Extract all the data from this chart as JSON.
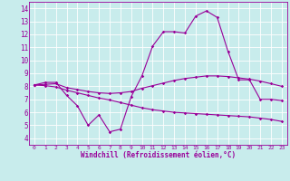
{
  "xlabel": "Windchill (Refroidissement éolien,°C)",
  "bg_color": "#c8ecec",
  "line_color": "#990099",
  "grid_color": "#ffffff",
  "x_ticks": [
    0,
    1,
    2,
    3,
    4,
    5,
    6,
    7,
    8,
    9,
    10,
    11,
    12,
    13,
    14,
    15,
    16,
    17,
    18,
    19,
    20,
    21,
    22,
    23
  ],
  "y_ticks": [
    4,
    5,
    6,
    7,
    8,
    9,
    10,
    11,
    12,
    13,
    14
  ],
  "xlim": [
    -0.5,
    23.5
  ],
  "ylim": [
    3.5,
    14.5
  ],
  "line1_x": [
    0,
    1,
    2,
    3,
    4,
    5,
    6,
    7,
    8,
    9,
    10,
    11,
    12,
    13,
    14,
    15,
    16,
    17,
    18,
    19,
    20,
    21,
    22,
    23
  ],
  "line1_y": [
    8.1,
    8.3,
    8.3,
    7.3,
    6.5,
    5.0,
    5.8,
    4.5,
    4.7,
    7.2,
    8.8,
    11.1,
    12.2,
    12.2,
    12.1,
    13.4,
    13.8,
    13.3,
    10.7,
    8.5,
    8.5,
    7.0,
    7.0,
    6.9
  ],
  "line2_x": [
    0,
    1,
    2,
    3,
    4,
    5,
    6,
    7,
    8,
    9,
    10,
    11,
    12,
    13,
    14,
    15,
    16,
    17,
    18,
    19,
    20,
    21,
    22,
    23
  ],
  "line2_y": [
    8.1,
    8.15,
    8.2,
    7.9,
    7.75,
    7.6,
    7.5,
    7.45,
    7.5,
    7.6,
    7.85,
    8.05,
    8.25,
    8.45,
    8.6,
    8.7,
    8.8,
    8.8,
    8.75,
    8.65,
    8.55,
    8.4,
    8.2,
    8.0
  ],
  "line3_x": [
    0,
    1,
    2,
    3,
    4,
    5,
    6,
    7,
    8,
    9,
    10,
    11,
    12,
    13,
    14,
    15,
    16,
    17,
    18,
    19,
    20,
    21,
    22,
    23
  ],
  "line3_y": [
    8.1,
    8.05,
    7.95,
    7.7,
    7.5,
    7.3,
    7.1,
    6.95,
    6.75,
    6.55,
    6.35,
    6.2,
    6.1,
    6.0,
    5.95,
    5.9,
    5.85,
    5.8,
    5.75,
    5.7,
    5.65,
    5.55,
    5.45,
    5.3
  ]
}
